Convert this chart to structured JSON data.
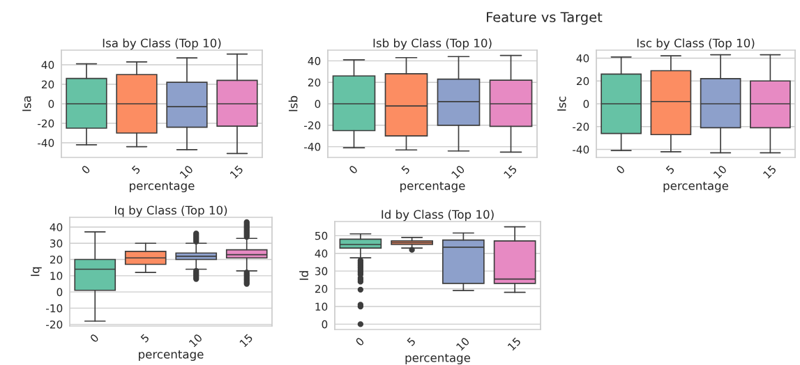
{
  "chart_data": [
    {
      "type": "box",
      "title": "Isa by Class (Top 10)",
      "xlabel": "percentage",
      "ylabel": "Isa",
      "annotations": [
        "Feature vs Target"
      ],
      "categories": [
        "0",
        "5",
        "10",
        "15"
      ],
      "colors": [
        "#66c2a5",
        "#fc8d62",
        "#8da0cb",
        "#e78ac3"
      ],
      "ylim": [
        -55,
        55
      ],
      "yticks": [
        -40,
        -20,
        0,
        20,
        40
      ],
      "grid": "y",
      "boxes": [
        {
          "low": -42,
          "q1": -25,
          "median": 0,
          "q3": 26,
          "high": 41
        },
        {
          "low": -44,
          "q1": -30,
          "median": 0,
          "q3": 30,
          "high": 43
        },
        {
          "low": -47,
          "q1": -24,
          "median": -3,
          "q3": 22,
          "high": 47
        },
        {
          "low": -51,
          "q1": -23,
          "median": 0,
          "q3": 24,
          "high": 51
        }
      ]
    },
    {
      "type": "box",
      "title": "Isb by Class (Top 10)",
      "xlabel": "percentage",
      "ylabel": "Isb",
      "categories": [
        "0",
        "5",
        "10",
        "15"
      ],
      "colors": [
        "#66c2a5",
        "#fc8d62",
        "#8da0cb",
        "#e78ac3"
      ],
      "ylim": [
        -50,
        50
      ],
      "yticks": [
        -40,
        -20,
        0,
        20,
        40
      ],
      "grid": "y",
      "boxes": [
        {
          "low": -41,
          "q1": -25,
          "median": 0,
          "q3": 26,
          "high": 41
        },
        {
          "low": -43,
          "q1": -30,
          "median": -2,
          "q3": 28,
          "high": 43
        },
        {
          "low": -44,
          "q1": -20,
          "median": 2,
          "q3": 23,
          "high": 44
        },
        {
          "low": -45,
          "q1": -21,
          "median": 0,
          "q3": 22,
          "high": 45
        }
      ]
    },
    {
      "type": "box",
      "title": "Isc by Class (Top 10)",
      "xlabel": "percentage",
      "ylabel": "Isc",
      "categories": [
        "0",
        "5",
        "10",
        "15"
      ],
      "colors": [
        "#66c2a5",
        "#fc8d62",
        "#8da0cb",
        "#e78ac3"
      ],
      "ylim": [
        -47,
        47
      ],
      "yticks": [
        -40,
        -20,
        0,
        20,
        40
      ],
      "grid": "y",
      "boxes": [
        {
          "low": -41,
          "q1": -26,
          "median": 0,
          "q3": 26,
          "high": 41
        },
        {
          "low": -42,
          "q1": -27,
          "median": 2,
          "q3": 29,
          "high": 42
        },
        {
          "low": -43,
          "q1": -21,
          "median": 0,
          "q3": 22,
          "high": 43
        },
        {
          "low": -43,
          "q1": -21,
          "median": 0,
          "q3": 20,
          "high": 43
        }
      ]
    },
    {
      "type": "box",
      "title": "Iq by Class (Top 10)",
      "xlabel": "percentage",
      "ylabel": "Iq",
      "categories": [
        "0",
        "5",
        "10",
        "15"
      ],
      "colors": [
        "#66c2a5",
        "#fc8d62",
        "#8da0cb",
        "#e78ac3"
      ],
      "ylim": [
        -21,
        46
      ],
      "yticks": [
        -20,
        -10,
        0,
        10,
        20,
        30,
        40
      ],
      "grid": "y",
      "boxes": [
        {
          "low": -18,
          "q1": 1,
          "median": 14,
          "q3": 20,
          "high": 37
        },
        {
          "low": 12,
          "q1": 17,
          "median": 21,
          "q3": 25,
          "high": 30
        },
        {
          "low": 14,
          "q1": 20,
          "median": 22,
          "q3": 24,
          "high": 30,
          "outliers": [
            8,
            9,
            10,
            11,
            12,
            13,
            31,
            32,
            33,
            34,
            35,
            36
          ]
        },
        {
          "low": 13,
          "q1": 21,
          "median": 23,
          "q3": 26,
          "high": 33,
          "outliers": [
            5,
            6,
            7,
            8,
            9,
            10,
            11,
            12,
            34,
            35,
            36,
            37,
            38,
            39,
            40,
            41,
            42,
            43
          ]
        }
      ]
    },
    {
      "type": "box",
      "title": "Id by Class (Top 10)",
      "xlabel": "percentage",
      "ylabel": "Id",
      "categories": [
        "0",
        "5",
        "10",
        "15"
      ],
      "colors": [
        "#66c2a5",
        "#fc8d62",
        "#8da0cb",
        "#e78ac3"
      ],
      "ylim": [
        -3,
        58
      ],
      "yticks": [
        0,
        10,
        20,
        30,
        40,
        50
      ],
      "grid": "y",
      "boxes": [
        {
          "low": 37.5,
          "q1": 43,
          "median": 45,
          "q3": 48,
          "high": 51,
          "outliers": [
            0,
            10,
            11,
            19.5,
            24,
            25,
            26,
            28,
            29,
            30,
            31,
            32,
            33,
            34,
            35,
            36
          ]
        },
        {
          "low": 43,
          "q1": 45,
          "median": 46,
          "q3": 47,
          "high": 49,
          "outliers": [
            42
          ]
        },
        {
          "low": 19,
          "q1": 23,
          "median": 43.5,
          "q3": 47.5,
          "high": 51.5
        },
        {
          "low": 18,
          "q1": 23,
          "median": 25.5,
          "q3": 47,
          "high": 55
        }
      ]
    }
  ]
}
